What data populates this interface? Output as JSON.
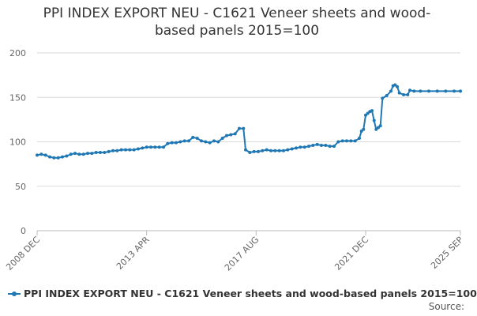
{
  "chart_data": {
    "type": "line",
    "title_line1": "PPI INDEX EXPORT NEU - C1621 Veneer sheets and wood-",
    "title_line2": "based panels 2015=100",
    "xlabel": "",
    "ylabel": "",
    "ylim": [
      0,
      200
    ],
    "yticks": [
      "0",
      "50",
      "100",
      "150",
      "200"
    ],
    "xlim": [
      "2008-12",
      "2025-09"
    ],
    "xticks": [
      {
        "label": "2008 DEC",
        "x": "2008-12"
      },
      {
        "label": "2013 APR",
        "x": "2013-04"
      },
      {
        "label": "2017 AUG",
        "x": "2017-08"
      },
      {
        "label": "2021 DEC",
        "x": "2021-12"
      },
      {
        "label": "2025 SEP",
        "x": "2025-09"
      }
    ],
    "grid": true,
    "legend_position": "bottom",
    "series": [
      {
        "name": "PPI INDEX EXPORT NEU - C1621 Veneer sheets and wood-based panels 2015=100",
        "color": "#1f78b4",
        "points": [
          [
            "2008-12",
            85
          ],
          [
            "2009-02",
            86
          ],
          [
            "2009-04",
            85
          ],
          [
            "2009-06",
            83
          ],
          [
            "2009-08",
            82
          ],
          [
            "2009-10",
            82
          ],
          [
            "2009-12",
            83
          ],
          [
            "2010-02",
            84
          ],
          [
            "2010-04",
            86
          ],
          [
            "2010-06",
            87
          ],
          [
            "2010-08",
            86
          ],
          [
            "2010-10",
            86
          ],
          [
            "2010-12",
            87
          ],
          [
            "2011-02",
            87
          ],
          [
            "2011-04",
            88
          ],
          [
            "2011-06",
            88
          ],
          [
            "2011-08",
            88
          ],
          [
            "2011-10",
            89
          ],
          [
            "2011-12",
            90
          ],
          [
            "2012-02",
            90
          ],
          [
            "2012-04",
            91
          ],
          [
            "2012-06",
            91
          ],
          [
            "2012-08",
            91
          ],
          [
            "2012-10",
            91
          ],
          [
            "2012-12",
            92
          ],
          [
            "2013-02",
            93
          ],
          [
            "2013-04",
            94
          ],
          [
            "2013-06",
            94
          ],
          [
            "2013-08",
            94
          ],
          [
            "2013-10",
            94
          ],
          [
            "2013-12",
            94
          ],
          [
            "2014-02",
            98
          ],
          [
            "2014-04",
            99
          ],
          [
            "2014-06",
            99
          ],
          [
            "2014-08",
            100
          ],
          [
            "2014-10",
            101
          ],
          [
            "2014-12",
            101
          ],
          [
            "2015-02",
            105
          ],
          [
            "2015-04",
            104
          ],
          [
            "2015-06",
            101
          ],
          [
            "2015-08",
            100
          ],
          [
            "2015-10",
            99
          ],
          [
            "2015-12",
            101
          ],
          [
            "2016-02",
            100
          ],
          [
            "2016-04",
            104
          ],
          [
            "2016-06",
            107
          ],
          [
            "2016-08",
            108
          ],
          [
            "2016-10",
            109
          ],
          [
            "2016-12",
            115
          ],
          [
            "2017-02",
            115
          ],
          [
            "2017-03",
            91
          ],
          [
            "2017-05",
            88
          ],
          [
            "2017-07",
            89
          ],
          [
            "2017-09",
            89
          ],
          [
            "2017-11",
            90
          ],
          [
            "2018-01",
            91
          ],
          [
            "2018-03",
            90
          ],
          [
            "2018-05",
            90
          ],
          [
            "2018-07",
            90
          ],
          [
            "2018-09",
            90
          ],
          [
            "2018-11",
            91
          ],
          [
            "2019-01",
            92
          ],
          [
            "2019-03",
            93
          ],
          [
            "2019-05",
            94
          ],
          [
            "2019-07",
            94
          ],
          [
            "2019-09",
            95
          ],
          [
            "2019-11",
            96
          ],
          [
            "2020-01",
            97
          ],
          [
            "2020-03",
            96
          ],
          [
            "2020-05",
            96
          ],
          [
            "2020-07",
            95
          ],
          [
            "2020-09",
            95
          ],
          [
            "2020-11",
            100
          ],
          [
            "2021-01",
            101
          ],
          [
            "2021-03",
            101
          ],
          [
            "2021-05",
            101
          ],
          [
            "2021-07",
            101
          ],
          [
            "2021-09",
            104
          ],
          [
            "2021-10",
            112
          ],
          [
            "2021-11",
            114
          ],
          [
            "2021-12",
            130
          ],
          [
            "2022-01",
            132
          ],
          [
            "2022-02",
            134
          ],
          [
            "2022-03",
            135
          ],
          [
            "2022-04",
            124
          ],
          [
            "2022-05",
            114
          ],
          [
            "2022-06",
            116
          ],
          [
            "2022-07",
            118
          ],
          [
            "2022-08",
            149
          ],
          [
            "2022-10",
            152
          ],
          [
            "2022-12",
            157
          ],
          [
            "2023-01",
            163
          ],
          [
            "2023-02",
            164
          ],
          [
            "2023-03",
            162
          ],
          [
            "2023-04",
            155
          ],
          [
            "2023-06",
            153
          ],
          [
            "2023-08",
            153
          ],
          [
            "2023-09",
            158
          ],
          [
            "2023-11",
            157
          ],
          [
            "2024-02",
            157
          ],
          [
            "2024-06",
            157
          ],
          [
            "2024-10",
            157
          ],
          [
            "2025-02",
            157
          ],
          [
            "2025-06",
            157
          ],
          [
            "2025-09",
            157
          ]
        ]
      }
    ]
  },
  "source_label": "Source:"
}
